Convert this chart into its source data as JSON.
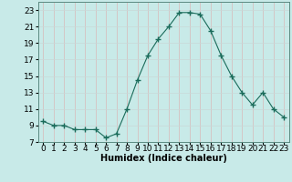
{
  "x": [
    0,
    1,
    2,
    3,
    4,
    5,
    6,
    7,
    8,
    9,
    10,
    11,
    12,
    13,
    14,
    15,
    16,
    17,
    18,
    19,
    20,
    21,
    22,
    23
  ],
  "y": [
    9.5,
    9.0,
    9.0,
    8.5,
    8.5,
    8.5,
    7.5,
    8.0,
    11.0,
    14.5,
    17.5,
    19.5,
    21.0,
    22.7,
    22.7,
    22.5,
    20.5,
    17.5,
    15.0,
    13.0,
    11.5,
    13.0,
    11.0,
    10.0
  ],
  "line_color": "#1a6b5a",
  "marker": "+",
  "marker_size": 4,
  "bg_color": "#c8eae8",
  "grid_color": "#b0d0ce",
  "xlabel": "Humidex (Indice chaleur)",
  "xlim": [
    -0.5,
    23.5
  ],
  "ylim": [
    7,
    24
  ],
  "yticks": [
    7,
    9,
    11,
    13,
    15,
    17,
    19,
    21,
    23
  ],
  "xtick_labels": [
    "0",
    "1",
    "2",
    "3",
    "4",
    "5",
    "6",
    "7",
    "8",
    "9",
    "10",
    "11",
    "12",
    "13",
    "14",
    "15",
    "16",
    "17",
    "18",
    "19",
    "20",
    "21",
    "22",
    "23"
  ],
  "label_fontsize": 7,
  "tick_fontsize": 6.5
}
